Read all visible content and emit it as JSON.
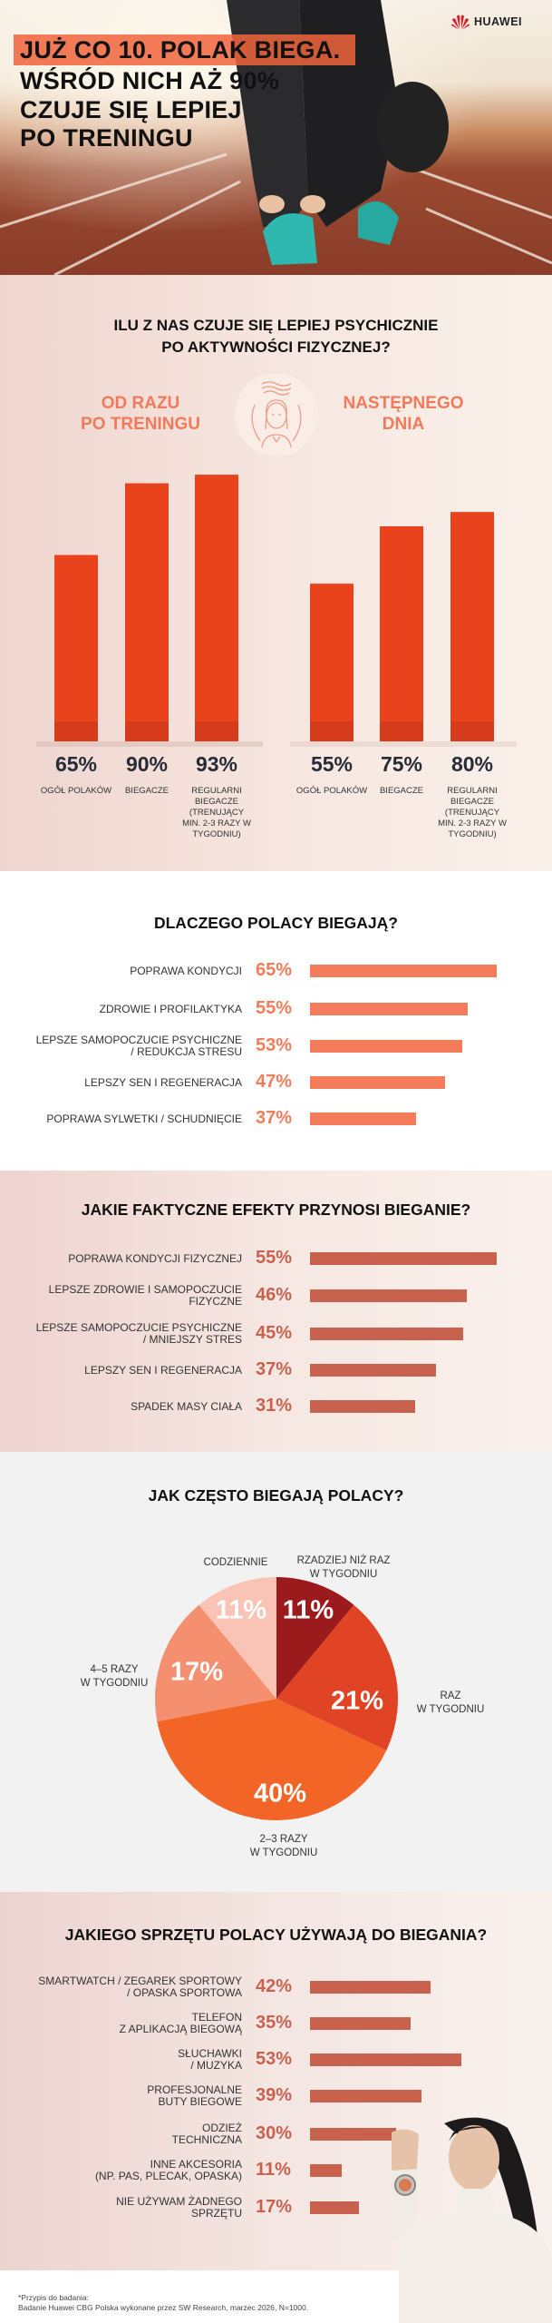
{
  "hero": {
    "brand": "HUAWEI",
    "title_lines": [
      "JUŻ CO 10. POLAK BIEGA.",
      "WŚRÓD NICH AŻ 90%",
      "CZUJE SIĘ LEPIEJ",
      "PO TRENINGU"
    ],
    "highlight_color": "#f0643c"
  },
  "chart_data": [
    {
      "type": "bar",
      "title": "ILU Z NAS CZUJE SIĘ LEPIEJ PSYCHICZNIE\nPO AKTYWNOŚCI FIZYCZNEJ?",
      "icon": "woman-calm-mind-icon",
      "categories": [
        "OGÓŁ POLAKÓW",
        "BIEGACZE",
        "REGULARNI BIEGACZE (TRENUJĄCY MIN. 2-3 RAZY W TYGODNIU)"
      ],
      "series": [
        {
          "name": "OD RAZU\nPO TRENINGU",
          "values": [
            65,
            90,
            93
          ]
        },
        {
          "name": "NASTĘPNEGO\nDNIA",
          "values": [
            55,
            75,
            80
          ]
        }
      ],
      "unit": "%",
      "bar_color": "#e8431c",
      "header_color": "#f07a5c"
    },
    {
      "type": "bar",
      "orientation": "horizontal",
      "title": "DLACZEGO POLACY BIEGAJĄ?",
      "categories": [
        "POPRAWA KONDYCJI",
        "ZDROWIE I PROFILAKTYKA",
        "LEPSZE SAMOPOCZUCIE PSYCHICZNE\n/ REDUKCJA STRESU",
        "LEPSZY SEN I REGENERACJA",
        "POPRAWA SYLWETKI / SCHUDNIĘCIE"
      ],
      "values": [
        65,
        55,
        53,
        47,
        37
      ],
      "unit": "%",
      "bar_color": "#f47c5a"
    },
    {
      "type": "bar",
      "orientation": "horizontal",
      "title": "JAKIE FAKTYCZNE EFEKTY PRZYNOSI BIEGANIE?",
      "categories": [
        "POPRAWA KONDYCJI FIZYCZNEJ",
        "LEPSZE ZDROWIE I SAMOPOCZUCIE\nFIZYCZNE",
        "LEPSZE SAMOPOCZUCIE PSYCHICZNE\n/ MNIEJSZY STRES",
        "LEPSZY SEN I REGENERACJA",
        "SPADEK MASY CIAŁA"
      ],
      "values": [
        55,
        46,
        45,
        37,
        31
      ],
      "unit": "%",
      "bar_color": "#c9614f"
    },
    {
      "type": "pie",
      "title": "JAK CZĘSTO BIEGAJĄ POLACY?",
      "slices": [
        {
          "label": "RZADZIEJ NIŻ RAZ\nW TYGODNIU",
          "value": 11,
          "color": "#9b1a1c"
        },
        {
          "label": "RAZ\nW TYGODNIU",
          "value": 21,
          "color": "#e04424"
        },
        {
          "label": "2–3 RAZY\nW TYGODNIU",
          "value": 40,
          "color": "#f26526"
        },
        {
          "label": "4–5 RAZY\nW TYGODNIU",
          "value": 17,
          "color": "#f4906f"
        },
        {
          "label": "CODZIENNIE",
          "value": 11,
          "color": "#f9c4b6"
        }
      ],
      "unit": "%"
    },
    {
      "type": "bar",
      "orientation": "horizontal",
      "title": "JAKIEGO SPRZĘTU POLACY UŻYWAJĄ DO BIEGANIA?",
      "categories": [
        "SMARTWATCH / ZEGAREK SPORTOWY\n/ OPASKA SPORTOWA",
        "TELEFON\nZ APLIKACJĄ BIEGOWĄ",
        "SŁUCHAWKI\n/ MUZYKA",
        "PROFESJONALNE\nBUTY BIEGOWE",
        "ODZIEŻ\nTECHNICZNA",
        "INNE AKCESORIA\n(NP. PAS, PLECAK, OPASKA)",
        "NIE UŻYWAM ŻADNEGO\nSPRZĘTU"
      ],
      "values": [
        42,
        35,
        53,
        39,
        30,
        11,
        17
      ],
      "unit": "%",
      "bar_color": "#c9614f"
    }
  ],
  "footer": {
    "note_title": "*Przypis do badania:",
    "note_text": "Badanie Huawei CBG Polska wykonane przez SW Research, marzec 2026, N=1000."
  }
}
